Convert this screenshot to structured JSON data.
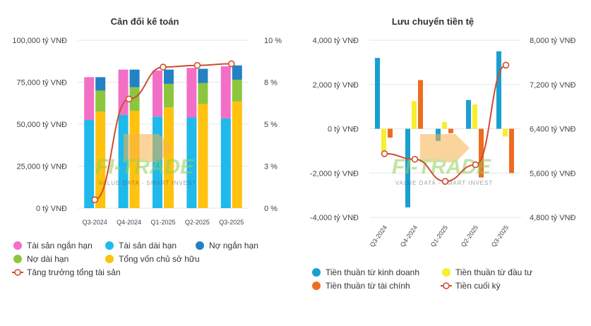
{
  "chart_data": [
    {
      "type": "bar",
      "title": "Cân đối kế toán",
      "categories": [
        "Q3-2024",
        "Q4-2024",
        "Q1-2025",
        "Q2-2025",
        "Q3-2025"
      ],
      "left_axis": {
        "ylim": [
          0,
          100000
        ],
        "tick_labels": [
          "100,000 tỷ VNĐ",
          "75,000 tỷ VNĐ",
          "50,000 tỷ VNĐ",
          "25,000 tỷ VNĐ",
          "0 tỷ VNĐ"
        ]
      },
      "right_axis": {
        "ylim": [
          0,
          10
        ],
        "tick_labels": [
          "10 %",
          "8 %",
          "5 %",
          "3 %",
          "0 %"
        ]
      },
      "stacks": [
        {
          "name": "assets",
          "series": [
            {
              "name": "Tài sản dài hạn",
              "color": "#1fb9ec",
              "values": [
                52500,
                55500,
                54500,
                54000,
                53500
              ]
            },
            {
              "name": "Tài sản ngắn hạn",
              "color": "#f36fc6",
              "values": [
                25500,
                27000,
                27500,
                29500,
                31000
              ]
            }
          ]
        },
        {
          "name": "capital",
          "series": [
            {
              "name": "Tổng vốn chủ sở hữu",
              "color": "#ffc20e",
              "values": [
                57500,
                58000,
                60000,
                62000,
                63500
              ]
            },
            {
              "name": "Nợ dài hạn",
              "color": "#8cc63f",
              "values": [
                12500,
                14000,
                14000,
                12500,
                13000
              ]
            },
            {
              "name": "Nợ ngắn hạn",
              "color": "#2481c3",
              "values": [
                8000,
                10500,
                8500,
                8500,
                8500
              ]
            }
          ]
        }
      ],
      "line": {
        "name": "Tăng trưởng tổng tài sản",
        "color": "#d04c2f",
        "values": [
          0.5,
          6.5,
          8.4,
          8.5,
          8.6
        ]
      },
      "legend": [
        {
          "label": "Tài sản ngắn hạn",
          "color": "#f36fc6",
          "kind": "dot"
        },
        {
          "label": "Tài sản dài hạn",
          "color": "#1fb9ec",
          "kind": "dot"
        },
        {
          "label": "Nợ ngắn hạn",
          "color": "#2481c3",
          "kind": "dot"
        },
        {
          "label": "Nợ dài hạn",
          "color": "#8cc63f",
          "kind": "dot"
        },
        {
          "label": "Tổng vốn chủ sở hữu",
          "color": "#ffc20e",
          "kind": "dot"
        },
        {
          "label": "Tăng trưởng tổng tài sản",
          "color": "#d04c2f",
          "kind": "line"
        }
      ]
    },
    {
      "type": "bar",
      "title": "Lưu chuyển tiền tệ",
      "categories": [
        "Q3-2024",
        "Q4-2024",
        "Q1-2025",
        "Q2-2025",
        "Q3-2025"
      ],
      "left_axis": {
        "ylim": [
          -4000,
          4000
        ],
        "tick_labels": [
          "4,000 tỷ VNĐ",
          "2,000 tỷ VNĐ",
          "0 tỷ VNĐ",
          "-2,000 tỷ VNĐ",
          "-4,000 tỷ VNĐ"
        ]
      },
      "right_axis": {
        "ylim": [
          4800,
          8000
        ],
        "tick_labels": [
          "8,000 tỷ VNĐ",
          "7,200 tỷ VNĐ",
          "6,400 tỷ VNĐ",
          "5,600 tỷ VNĐ",
          "4,800 tỷ VNĐ"
        ]
      },
      "series": [
        {
          "name": "Tiền thuần từ kinh doanh",
          "color": "#1a9fd0",
          "values": [
            3200,
            -3550,
            -550,
            1300,
            3500
          ]
        },
        {
          "name": "Tiền thuần từ đầu tư",
          "color": "#f7ef2b",
          "values": [
            -1150,
            1250,
            300,
            1100,
            -350
          ]
        },
        {
          "name": "Tiền thuần từ tài chính",
          "color": "#ee6c20",
          "values": [
            -400,
            2200,
            -200,
            -2200,
            -2000
          ]
        }
      ],
      "line": {
        "name": "Tiền cuối kỳ",
        "color": "#d04c2f",
        "values": [
          5950,
          5850,
          5450,
          5750,
          7550
        ]
      },
      "legend": [
        {
          "label": "Tiền thuần từ kinh doanh",
          "color": "#1a9fd0",
          "kind": "dot"
        },
        {
          "label": "Tiền thuần từ đầu tư",
          "color": "#f7ef2b",
          "kind": "dot"
        },
        {
          "label": "Tiền thuần từ tài chính",
          "color": "#ee6c20",
          "kind": "dot"
        },
        {
          "label": "Tiền cuối kỳ",
          "color": "#d04c2f",
          "kind": "line"
        }
      ]
    }
  ],
  "watermark": {
    "brand": "FI-TRADE",
    "tagline": "VALUE DATA - SMART INVEST"
  }
}
